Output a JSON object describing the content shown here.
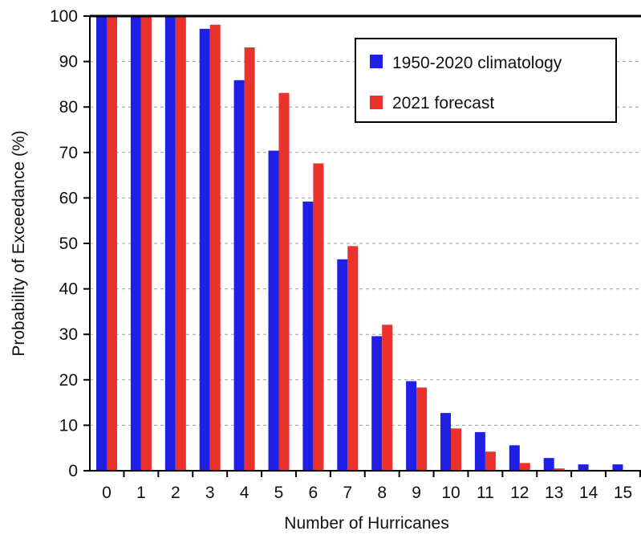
{
  "chart_data": {
    "type": "bar",
    "title": "",
    "xlabel": "Number of Hurricanes",
    "ylabel": "Probability of Exceedance (%)",
    "ylim": [
      0,
      100
    ],
    "yticks": [
      "0",
      "10",
      "20",
      "30",
      "40",
      "50",
      "60",
      "70",
      "80",
      "90",
      "100"
    ],
    "categories": [
      "0",
      "1",
      "2",
      "3",
      "4",
      "5",
      "6",
      "7",
      "8",
      "9",
      "10",
      "11",
      "12",
      "13",
      "14",
      "15"
    ],
    "grid": true,
    "legend_position": "top-right",
    "series": [
      {
        "name": "1950-2020 climatology",
        "color": "#1f1fe6",
        "values": [
          100,
          100,
          100,
          97.2,
          85.9,
          70.4,
          59.2,
          46.5,
          29.6,
          19.7,
          12.7,
          8.5,
          5.6,
          2.8,
          1.4,
          1.4
        ]
      },
      {
        "name": "2021 forecast",
        "color": "#e8322b",
        "values": [
          100,
          100,
          100,
          98.1,
          93.1,
          83.1,
          67.6,
          49.4,
          32.1,
          18.3,
          9.3,
          4.2,
          1.7,
          0.5,
          0.2,
          0.0
        ]
      }
    ]
  }
}
